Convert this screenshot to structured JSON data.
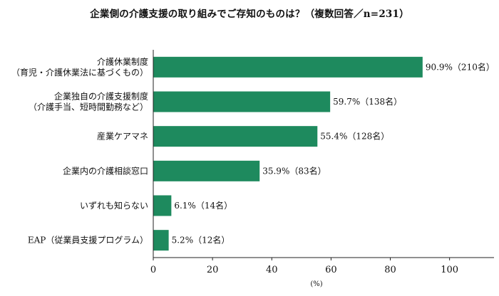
{
  "chart_data": {
    "type": "bar",
    "orientation": "horizontal",
    "title": "企業側の介護支援の取り組みでご存知のものは？（複数回答／n=231）",
    "categories": [
      [
        "介護休業制度",
        "（育児・介護休業法に基づくもの）"
      ],
      [
        "企業独自の介護支援制度",
        "（介護手当、短時間勤務など）"
      ],
      [
        "産業ケアマネ"
      ],
      [
        "企業内の介護相談窓口"
      ],
      [
        "いずれも知らない"
      ],
      [
        "EAP（従業員支援プログラム）"
      ]
    ],
    "values": [
      90.9,
      59.7,
      55.4,
      35.9,
      6.1,
      5.2
    ],
    "data_labels": [
      "90.9%（210名）",
      "59.7%（138名）",
      "55.4%（128名）",
      "35.9%（83名）",
      "6.1%（14名）",
      "5.2%（12名）"
    ],
    "xlabel": "(%)",
    "xlim": [
      0,
      115
    ],
    "xticks": [
      0,
      20,
      40,
      60,
      80,
      100
    ],
    "bar_color": "#1e8a5e",
    "grid": false,
    "legend": "none"
  }
}
